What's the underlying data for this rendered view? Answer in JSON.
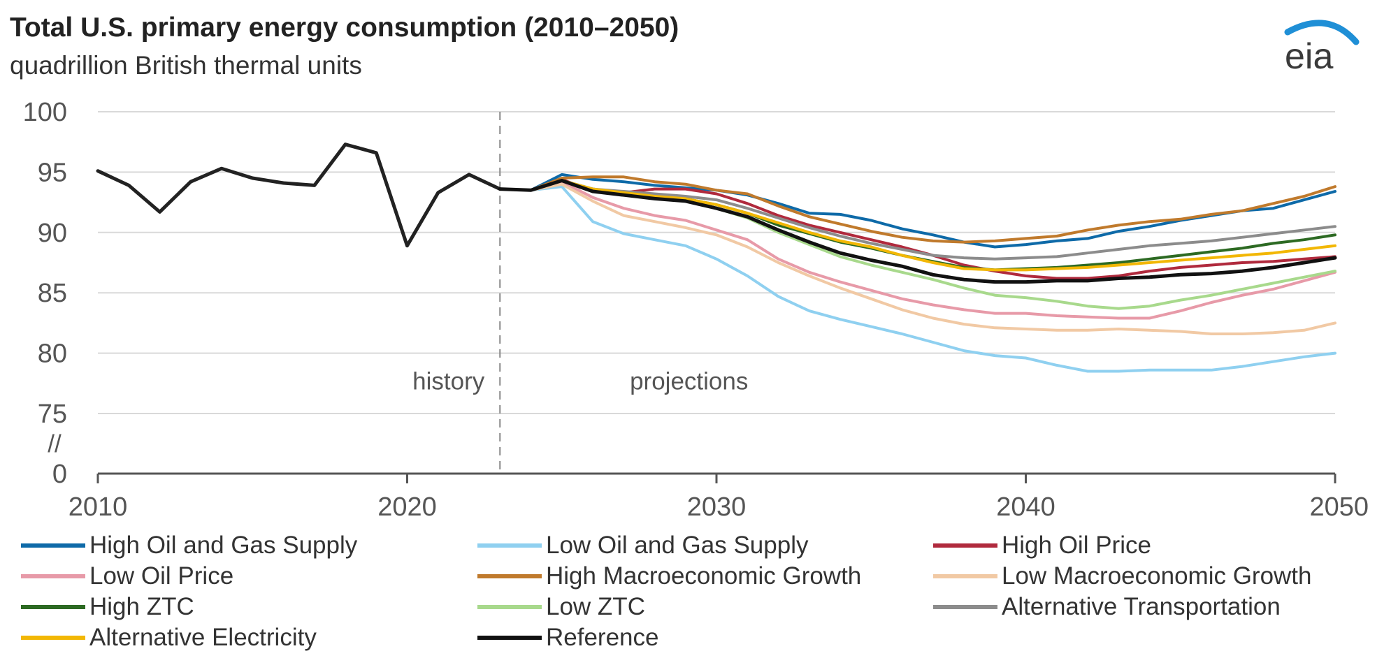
{
  "header": {
    "title": "Total U.S. primary energy consumption (2010–2050)",
    "subtitle": "quadrillion British thermal units"
  },
  "logo": {
    "text": "eia",
    "arc_color": "#1f8fd6"
  },
  "annotations": {
    "history": "history",
    "projections": "projections",
    "axis_break": "//"
  },
  "chart_data": {
    "type": "line",
    "title": "Total U.S. primary energy consumption (2010–2050)",
    "subtitle": "quadrillion British thermal units",
    "xlabel": "",
    "ylabel": "",
    "xlim": [
      2010,
      2050
    ],
    "ylim": [
      0,
      100
    ],
    "x_ticks": [
      2010,
      2020,
      2030,
      2040,
      2050
    ],
    "y_ticks": [
      0,
      75,
      80,
      85,
      90,
      95,
      100
    ],
    "axis_break": "between 0 and 75",
    "grid": true,
    "history_end": 2023,
    "legend_position": "bottom",
    "history": {
      "name": "",
      "color": "#222222",
      "x": [
        2010,
        2011,
        2012,
        2013,
        2014,
        2015,
        2016,
        2017,
        2018,
        2019,
        2020,
        2021,
        2022,
        2023
      ],
      "y": [
        95.1,
        93.9,
        91.7,
        94.2,
        95.3,
        94.5,
        94.1,
        93.9,
        97.3,
        96.6,
        88.9,
        93.3,
        94.8,
        93.6
      ]
    },
    "series": [
      {
        "name": "High Oil and Gas Supply",
        "color": "#0e6aa8",
        "x": [
          2023,
          2024,
          2025,
          2026,
          2027,
          2028,
          2029,
          2030,
          2031,
          2032,
          2033,
          2034,
          2035,
          2036,
          2037,
          2038,
          2039,
          2040,
          2041,
          2042,
          2043,
          2044,
          2045,
          2046,
          2047,
          2048,
          2049,
          2050
        ],
        "y": [
          93.6,
          93.5,
          94.8,
          94.4,
          94.2,
          93.9,
          93.7,
          93.5,
          93.1,
          92.4,
          91.6,
          91.5,
          91.0,
          90.3,
          89.8,
          89.2,
          88.8,
          89.0,
          89.3,
          89.5,
          90.1,
          90.5,
          91.0,
          91.4,
          91.8,
          92.0,
          92.7,
          93.4
        ]
      },
      {
        "name": "Low Oil and Gas Supply",
        "color": "#8fd0f0",
        "x": [
          2023,
          2024,
          2025,
          2026,
          2027,
          2028,
          2029,
          2030,
          2031,
          2032,
          2033,
          2034,
          2035,
          2036,
          2037,
          2038,
          2039,
          2040,
          2041,
          2042,
          2043,
          2044,
          2045,
          2046,
          2047,
          2048,
          2049,
          2050
        ],
        "y": [
          93.6,
          93.5,
          93.8,
          90.9,
          89.9,
          89.4,
          88.9,
          87.8,
          86.4,
          84.7,
          83.5,
          82.8,
          82.2,
          81.6,
          80.9,
          80.2,
          79.8,
          79.6,
          79.0,
          78.5,
          78.5,
          78.6,
          78.6,
          78.6,
          78.9,
          79.3,
          79.7,
          80.0
        ]
      },
      {
        "name": "High Oil Price",
        "color": "#b02a3d",
        "x": [
          2023,
          2024,
          2025,
          2026,
          2027,
          2028,
          2029,
          2030,
          2031,
          2032,
          2033,
          2034,
          2035,
          2036,
          2037,
          2038,
          2039,
          2040,
          2041,
          2042,
          2043,
          2044,
          2045,
          2046,
          2047,
          2048,
          2049,
          2050
        ],
        "y": [
          93.6,
          93.5,
          94.4,
          93.4,
          93.3,
          93.6,
          93.6,
          93.2,
          92.4,
          91.4,
          90.6,
          90.0,
          89.4,
          88.8,
          88.1,
          87.3,
          86.8,
          86.4,
          86.2,
          86.2,
          86.4,
          86.8,
          87.1,
          87.3,
          87.5,
          87.6,
          87.8,
          88.0
        ]
      },
      {
        "name": "Low Oil Price",
        "color": "#e79aa8",
        "x": [
          2023,
          2024,
          2025,
          2026,
          2027,
          2028,
          2029,
          2030,
          2031,
          2032,
          2033,
          2034,
          2035,
          2036,
          2037,
          2038,
          2039,
          2040,
          2041,
          2042,
          2043,
          2044,
          2045,
          2046,
          2047,
          2048,
          2049,
          2050
        ],
        "y": [
          93.6,
          93.5,
          94.2,
          92.9,
          92.0,
          91.4,
          91.0,
          90.2,
          89.4,
          87.8,
          86.7,
          85.9,
          85.2,
          84.5,
          84.0,
          83.6,
          83.3,
          83.3,
          83.1,
          83.0,
          82.9,
          82.9,
          83.5,
          84.2,
          84.8,
          85.3,
          86.0,
          86.7
        ]
      },
      {
        "name": "High Macroeconomic Growth",
        "color": "#c07a2c",
        "x": [
          2023,
          2024,
          2025,
          2026,
          2027,
          2028,
          2029,
          2030,
          2031,
          2032,
          2033,
          2034,
          2035,
          2036,
          2037,
          2038,
          2039,
          2040,
          2041,
          2042,
          2043,
          2044,
          2045,
          2046,
          2047,
          2048,
          2049,
          2050
        ],
        "y": [
          93.6,
          93.5,
          94.5,
          94.6,
          94.6,
          94.2,
          94.0,
          93.5,
          93.2,
          92.2,
          91.3,
          90.7,
          90.1,
          89.6,
          89.3,
          89.2,
          89.3,
          89.5,
          89.7,
          90.2,
          90.6,
          90.9,
          91.1,
          91.5,
          91.8,
          92.4,
          93.0,
          93.8
        ]
      },
      {
        "name": "Low Macroeconomic Growth",
        "color": "#f1c9a4",
        "x": [
          2023,
          2024,
          2025,
          2026,
          2027,
          2028,
          2029,
          2030,
          2031,
          2032,
          2033,
          2034,
          2035,
          2036,
          2037,
          2038,
          2039,
          2040,
          2041,
          2042,
          2043,
          2044,
          2045,
          2046,
          2047,
          2048,
          2049,
          2050
        ],
        "y": [
          93.6,
          93.5,
          94.0,
          92.6,
          91.4,
          90.9,
          90.4,
          89.8,
          88.8,
          87.5,
          86.4,
          85.4,
          84.5,
          83.6,
          82.9,
          82.4,
          82.1,
          82.0,
          81.9,
          81.9,
          82.0,
          81.9,
          81.8,
          81.6,
          81.6,
          81.7,
          81.9,
          82.5
        ]
      },
      {
        "name": "High ZTC",
        "color": "#2d6a23",
        "x": [
          2023,
          2024,
          2025,
          2026,
          2027,
          2028,
          2029,
          2030,
          2031,
          2032,
          2033,
          2034,
          2035,
          2036,
          2037,
          2038,
          2039,
          2040,
          2041,
          2042,
          2043,
          2044,
          2045,
          2046,
          2047,
          2048,
          2049,
          2050
        ],
        "y": [
          93.6,
          93.5,
          94.3,
          93.6,
          93.3,
          93.0,
          92.8,
          92.3,
          91.6,
          90.6,
          89.9,
          89.2,
          88.7,
          88.1,
          87.6,
          87.1,
          86.9,
          87.0,
          87.1,
          87.3,
          87.5,
          87.8,
          88.1,
          88.4,
          88.7,
          89.1,
          89.4,
          89.8
        ]
      },
      {
        "name": "Low ZTC",
        "color": "#a8d98c",
        "x": [
          2023,
          2024,
          2025,
          2026,
          2027,
          2028,
          2029,
          2030,
          2031,
          2032,
          2033,
          2034,
          2035,
          2036,
          2037,
          2038,
          2039,
          2040,
          2041,
          2042,
          2043,
          2044,
          2045,
          2046,
          2047,
          2048,
          2049,
          2050
        ],
        "y": [
          93.6,
          93.5,
          94.3,
          93.5,
          93.1,
          92.8,
          92.6,
          92.0,
          91.2,
          90.0,
          89.0,
          88.0,
          87.3,
          86.7,
          86.1,
          85.4,
          84.8,
          84.6,
          84.3,
          83.9,
          83.7,
          83.9,
          84.4,
          84.8,
          85.3,
          85.8,
          86.3,
          86.8
        ]
      },
      {
        "name": "Alternative Transportation",
        "color": "#8c8c8c",
        "x": [
          2023,
          2024,
          2025,
          2026,
          2027,
          2028,
          2029,
          2030,
          2031,
          2032,
          2033,
          2034,
          2035,
          2036,
          2037,
          2038,
          2039,
          2040,
          2041,
          2042,
          2043,
          2044,
          2045,
          2046,
          2047,
          2048,
          2049,
          2050
        ],
        "y": [
          93.6,
          93.5,
          94.3,
          93.6,
          93.4,
          93.2,
          93.0,
          92.7,
          92.0,
          91.2,
          90.4,
          89.7,
          89.1,
          88.6,
          88.1,
          87.9,
          87.8,
          87.9,
          88.0,
          88.3,
          88.6,
          88.9,
          89.1,
          89.3,
          89.6,
          89.9,
          90.2,
          90.5
        ]
      },
      {
        "name": "Alternative Electricity",
        "color": "#f2b705",
        "x": [
          2023,
          2024,
          2025,
          2026,
          2027,
          2028,
          2029,
          2030,
          2031,
          2032,
          2033,
          2034,
          2035,
          2036,
          2037,
          2038,
          2039,
          2040,
          2041,
          2042,
          2043,
          2044,
          2045,
          2046,
          2047,
          2048,
          2049,
          2050
        ],
        "y": [
          93.6,
          93.5,
          94.3,
          93.6,
          93.3,
          93.0,
          92.8,
          92.3,
          91.6,
          90.8,
          90.0,
          89.3,
          88.8,
          88.1,
          87.5,
          87.0,
          86.9,
          86.9,
          87.0,
          87.1,
          87.3,
          87.5,
          87.7,
          87.9,
          88.1,
          88.3,
          88.6,
          88.9
        ]
      },
      {
        "name": "Reference",
        "color": "#111111",
        "x": [
          2023,
          2024,
          2025,
          2026,
          2027,
          2028,
          2029,
          2030,
          2031,
          2032,
          2033,
          2034,
          2035,
          2036,
          2037,
          2038,
          2039,
          2040,
          2041,
          2042,
          2043,
          2044,
          2045,
          2046,
          2047,
          2048,
          2049,
          2050
        ],
        "y": [
          93.6,
          93.5,
          94.3,
          93.4,
          93.1,
          92.8,
          92.6,
          92.0,
          91.3,
          90.2,
          89.2,
          88.3,
          87.7,
          87.2,
          86.5,
          86.1,
          85.9,
          85.9,
          86.0,
          86.0,
          86.2,
          86.3,
          86.5,
          86.6,
          86.8,
          87.1,
          87.5,
          87.9
        ]
      }
    ]
  }
}
